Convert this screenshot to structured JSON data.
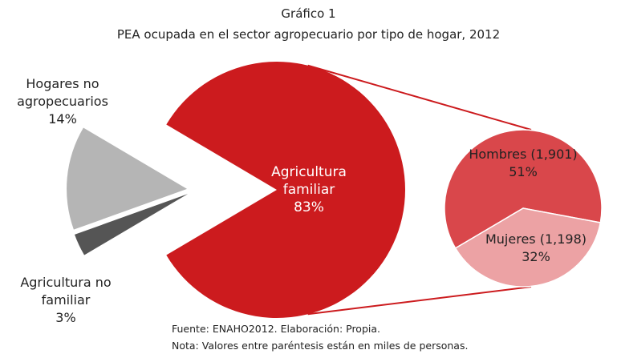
{
  "chart_data": {
    "type": "pie-of-pie",
    "title": "Gráfico 1",
    "subtitle": "PEA ocupada en el sector agropecuario por tipo de hogar, 2012",
    "categories": [
      "Agricultura familiar",
      "Hogares no agropecuarios",
      "Agricultura no familiar"
    ],
    "values": [
      83,
      14,
      3
    ],
    "value_labels": [
      "83%",
      "14%",
      "3%"
    ],
    "colors": [
      "#cc1b1e",
      "#b5b5b5",
      "#555555"
    ],
    "sub_categories": [
      "Hombres (1,901)",
      "Mujeres (1,198)"
    ],
    "sub_values": [
      51,
      32
    ],
    "sub_value_labels": [
      "51%",
      "32%"
    ],
    "sub_colors": [
      "#d9474b",
      "#eca2a4"
    ],
    "notes": [
      "Fuente: ENAHO2012. Elaboración: Propia.",
      "Nota: Valores entre paréntesis están en miles de personas."
    ]
  }
}
